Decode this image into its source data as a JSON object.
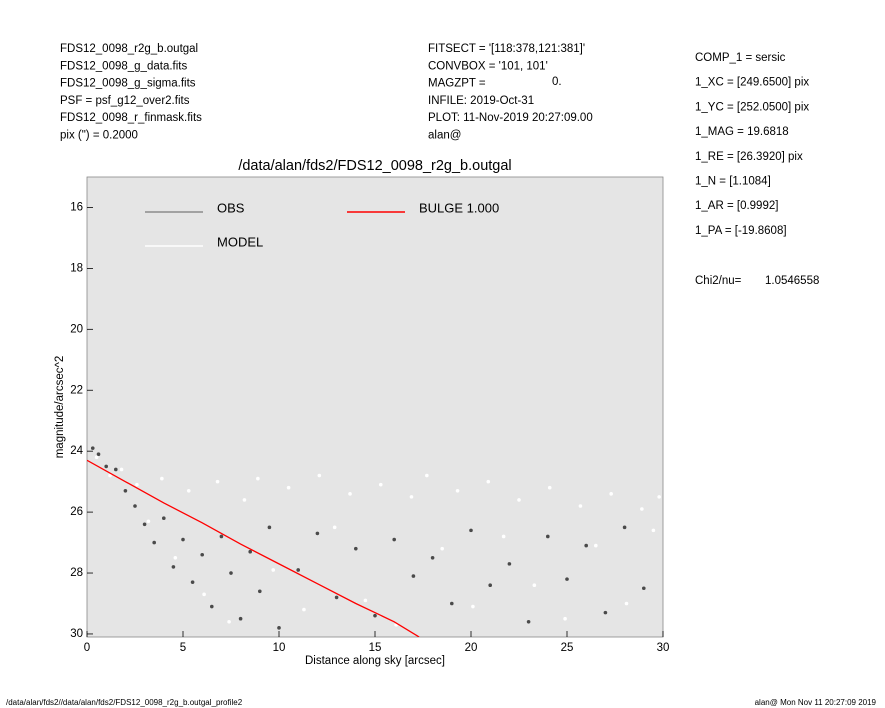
{
  "header_left": [
    "FDS12_0098_r2g_b.outgal",
    "FDS12_0098_g_data.fits",
    "FDS12_0098_g_sigma.fits",
    "PSF     = psf_g12_over2.fits",
    "FDS12_0098_r_finmask.fits",
    "pix (\") =  0.2000"
  ],
  "header_middle": [
    "FITSECT = '[118:378,121:381]'",
    "CONVBOX = '101, 101'",
    "MAGZPT  =",
    "INFILE: 2019-Oct-31",
    "PLOT: 11-Nov-2019 20:27:09.00",
    "alan@"
  ],
  "magzpt_value": "0.",
  "params": [
    "COMP_1  = sersic",
    "1_XC    = [249.6500] pix",
    "1_YC    = [252.0500] pix",
    "1_MAG   = 19.6818",
    "1_RE    = [26.3920] pix",
    "1_N     = [1.1084]",
    "1_AR    = [0.9992]",
    "1_PA    = [-19.8608]"
  ],
  "chi2_label": "Chi2/nu=",
  "chi2_value": "1.0546558",
  "footer_left": "/data/alan/fds2//data/alan/fds2/FDS12_0098_r2g_b.outgal_profile2",
  "footer_right": "alan@  Mon Nov 11 20:27:09 2019",
  "chart_data": {
    "type": "scatter",
    "title": "/data/alan/fds2/FDS12_0098_r2g_b.outgal",
    "x_label": "Distance along sky [arcsec]",
    "y_label": "magnitude/arcsec^2",
    "xlim": [
      0,
      30
    ],
    "ylim": [
      15,
      30.1
    ],
    "y_inverted": true,
    "xticks": [
      0,
      5,
      10,
      15,
      20,
      25,
      30
    ],
    "yticks": [
      16,
      18,
      20,
      22,
      24,
      26,
      28,
      30
    ],
    "grid": false,
    "background": "#e5e5e5",
    "series": [
      {
        "name": "OBS",
        "color": "#4a4a4a",
        "legend_color": "#8c8c8c",
        "kind": "points",
        "x": [
          0.3,
          0.6,
          1.0,
          1.5,
          2.0,
          2.5,
          3.0,
          3.5,
          4.0,
          4.5,
          5.0,
          5.5,
          6.0,
          6.5,
          7.0,
          7.5,
          8.0,
          8.5,
          9.0,
          9.5,
          10,
          11,
          12,
          13,
          14,
          15,
          16,
          17,
          18,
          19,
          20,
          21,
          22,
          23,
          24,
          25,
          26,
          27,
          28,
          29
        ],
        "values": [
          23.9,
          24.1,
          24.5,
          24.6,
          25.3,
          25.8,
          26.4,
          27.0,
          26.2,
          27.8,
          26.9,
          28.3,
          27.4,
          29.1,
          26.8,
          28.0,
          29.5,
          27.3,
          28.6,
          26.5,
          29.8,
          27.9,
          26.7,
          28.8,
          27.2,
          29.4,
          26.9,
          28.1,
          27.5,
          29.0,
          26.6,
          28.4,
          27.7,
          29.6,
          26.8,
          28.2,
          27.1,
          29.3,
          26.5,
          28.5
        ]
      },
      {
        "name": "MODEL",
        "color": "#ffffff",
        "legend_color": "#ffffff",
        "kind": "points",
        "x": [
          0.5,
          1.2,
          1.8,
          2.6,
          3.2,
          3.9,
          4.6,
          5.3,
          6.1,
          6.8,
          7.4,
          8.2,
          8.9,
          9.7,
          10.5,
          11.3,
          12.1,
          12.9,
          13.7,
          14.5,
          15.3,
          16.1,
          16.9,
          17.7,
          18.5,
          19.3,
          20.1,
          20.9,
          21.7,
          22.5,
          23.3,
          24.1,
          24.9,
          25.7,
          26.5,
          27.3,
          28.1,
          28.9,
          29.5,
          29.8
        ],
        "values": [
          24.2,
          24.8,
          24.6,
          25.1,
          26.3,
          24.9,
          27.5,
          25.3,
          28.7,
          25.0,
          29.6,
          25.6,
          24.9,
          27.9,
          25.2,
          29.2,
          24.8,
          26.5,
          25.4,
          28.9,
          25.1,
          29.7,
          25.5,
          24.8,
          27.2,
          25.3,
          29.1,
          25.0,
          26.8,
          25.6,
          28.4,
          25.2,
          29.5,
          25.8,
          27.1,
          25.4,
          29.0,
          25.9,
          26.6,
          25.5
        ]
      },
      {
        "name": "BULGE  1.000",
        "color": "#ff0000",
        "legend_color": "#ff0000",
        "kind": "line",
        "x": [
          0,
          2,
          4,
          6,
          8,
          10,
          12,
          14,
          16,
          17.3
        ],
        "values": [
          24.3,
          25.0,
          25.7,
          26.35,
          27.05,
          27.7,
          28.35,
          29.0,
          29.6,
          30.1
        ]
      }
    ]
  }
}
